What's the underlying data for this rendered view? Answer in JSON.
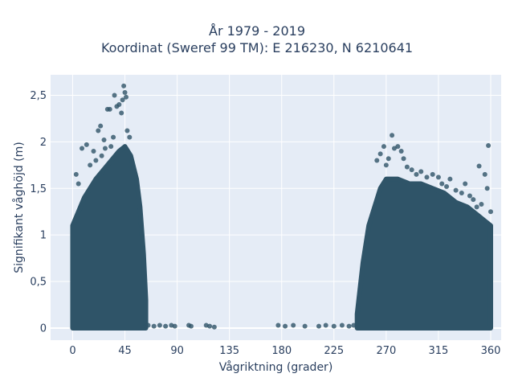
{
  "chart_data": {
    "type": "scatter",
    "title": "År 1979 - 2019",
    "subtitle": "Koordinat (Sweref 99 TM): E 216230, N 6210641",
    "xlabel": "Vågriktning (grader)",
    "ylabel": "Signifikant våghöjd (m)",
    "xlim": [
      -19,
      369
    ],
    "ylim": [
      -0.13,
      2.72
    ],
    "x_ticks": [
      0,
      45,
      90,
      135,
      180,
      225,
      270,
      315,
      360
    ],
    "x_tick_labels": [
      "0",
      "45",
      "90",
      "135",
      "180",
      "225",
      "270",
      "315",
      "360"
    ],
    "y_ticks": [
      0,
      0.5,
      1,
      1.5,
      2,
      2.5
    ],
    "y_tick_labels": [
      "0",
      "0,5",
      "1",
      "1,5",
      "2",
      "2,5"
    ],
    "grid": true,
    "marker_color": "#2f5468",
    "background": "#e5ecf6",
    "dense_regions": [
      {
        "x_start": 0,
        "x_end": 63,
        "envelope": [
          [
            0,
            1.1
          ],
          [
            10,
            1.4
          ],
          [
            20,
            1.6
          ],
          [
            30,
            1.75
          ],
          [
            40,
            1.9
          ],
          [
            45,
            1.95
          ],
          [
            50,
            1.85
          ],
          [
            55,
            1.6
          ],
          [
            58,
            1.3
          ],
          [
            61,
            0.8
          ],
          [
            63,
            0.3
          ]
        ]
      },
      {
        "x_start": 245,
        "x_end": 360,
        "envelope": [
          [
            245,
            0.15
          ],
          [
            250,
            0.7
          ],
          [
            255,
            1.1
          ],
          [
            260,
            1.3
          ],
          [
            265,
            1.5
          ],
          [
            270,
            1.6
          ],
          [
            280,
            1.6
          ],
          [
            290,
            1.55
          ],
          [
            300,
            1.55
          ],
          [
            310,
            1.5
          ],
          [
            320,
            1.45
          ],
          [
            330,
            1.35
          ],
          [
            340,
            1.3
          ],
          [
            350,
            1.2
          ],
          [
            355,
            1.15
          ],
          [
            360,
            1.1
          ]
        ]
      }
    ],
    "outliers": [
      [
        3,
        1.65
      ],
      [
        5,
        1.55
      ],
      [
        8,
        1.93
      ],
      [
        12,
        1.97
      ],
      [
        15,
        1.75
      ],
      [
        18,
        1.9
      ],
      [
        20,
        1.8
      ],
      [
        22,
        2.12
      ],
      [
        24,
        2.17
      ],
      [
        25,
        1.85
      ],
      [
        27,
        2.02
      ],
      [
        28,
        1.93
      ],
      [
        30,
        2.35
      ],
      [
        32,
        2.35
      ],
      [
        33,
        1.95
      ],
      [
        35,
        2.05
      ],
      [
        36,
        2.5
      ],
      [
        38,
        2.38
      ],
      [
        40,
        2.4
      ],
      [
        42,
        2.31
      ],
      [
        43,
        2.45
      ],
      [
        44,
        2.6
      ],
      [
        45,
        2.53
      ],
      [
        46,
        2.48
      ],
      [
        47,
        2.12
      ],
      [
        49,
        2.05
      ],
      [
        63,
        0.02
      ],
      [
        65,
        0.03
      ],
      [
        70,
        0.02
      ],
      [
        75,
        0.03
      ],
      [
        80,
        0.02
      ],
      [
        85,
        0.03
      ],
      [
        88,
        0.02
      ],
      [
        100,
        0.03
      ],
      [
        102,
        0.02
      ],
      [
        115,
        0.03
      ],
      [
        118,
        0.02
      ],
      [
        122,
        0.01
      ],
      [
        177,
        0.03
      ],
      [
        183,
        0.02
      ],
      [
        190,
        0.03
      ],
      [
        200,
        0.02
      ],
      [
        212,
        0.02
      ],
      [
        218,
        0.03
      ],
      [
        225,
        0.02
      ],
      [
        232,
        0.03
      ],
      [
        238,
        0.02
      ],
      [
        242,
        0.03
      ],
      [
        262,
        1.8
      ],
      [
        265,
        1.87
      ],
      [
        268,
        1.95
      ],
      [
        270,
        1.75
      ],
      [
        272,
        1.82
      ],
      [
        275,
        2.07
      ],
      [
        277,
        1.93
      ],
      [
        280,
        1.95
      ],
      [
        283,
        1.9
      ],
      [
        285,
        1.82
      ],
      [
        288,
        1.73
      ],
      [
        292,
        1.7
      ],
      [
        296,
        1.65
      ],
      [
        300,
        1.68
      ],
      [
        305,
        1.62
      ],
      [
        310,
        1.65
      ],
      [
        315,
        1.62
      ],
      [
        318,
        1.55
      ],
      [
        322,
        1.52
      ],
      [
        325,
        1.6
      ],
      [
        330,
        1.48
      ],
      [
        335,
        1.45
      ],
      [
        338,
        1.55
      ],
      [
        342,
        1.42
      ],
      [
        345,
        1.38
      ],
      [
        348,
        1.3
      ],
      [
        350,
        1.74
      ],
      [
        352,
        1.33
      ],
      [
        355,
        1.65
      ],
      [
        357,
        1.5
      ],
      [
        358,
        1.96
      ],
      [
        360,
        1.25
      ]
    ]
  }
}
